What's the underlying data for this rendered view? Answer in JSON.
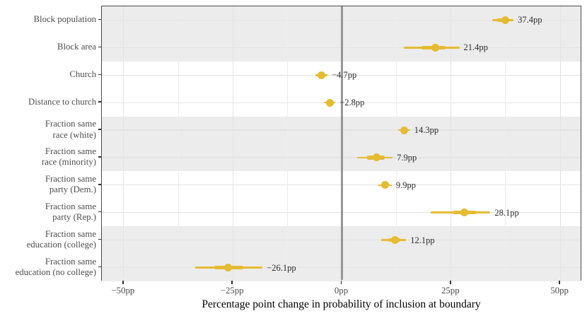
{
  "chart_data": {
    "type": "scatter",
    "subtype": "coefficient-dot-whisker",
    "title": "",
    "xlabel": "Percentage point change in probability of inclusion at boundary",
    "ylabel": "",
    "xlim": [
      -55,
      55
    ],
    "x_major_ticks": [
      {
        "value": -50,
        "label": "−50pp"
      },
      {
        "value": -25,
        "label": "−25pp"
      },
      {
        "value": 0,
        "label": "0pp"
      },
      {
        "value": 25,
        "label": "25pp"
      },
      {
        "value": 50,
        "label": "50pp"
      }
    ],
    "x_minor_ticks": [
      -37.5,
      -12.5,
      12.5,
      37.5
    ],
    "zero_reference_line": 0,
    "grid": "on",
    "legend": "none",
    "band_pattern": "alternating gray/white, two rows per band, starting gray",
    "rows": [
      {
        "category": "Block population",
        "label_lines": [
          "Block population"
        ],
        "estimate": 37.4,
        "value_label": "37.4pp",
        "ci_outer": [
          34.5,
          39.3
        ],
        "ci_inner": [
          35.5,
          38.3
        ]
      },
      {
        "category": "Block area",
        "label_lines": [
          "Block area"
        ],
        "estimate": 21.4,
        "value_label": "21.4pp",
        "ci_outer": [
          14.2,
          26.9
        ],
        "ci_inner": [
          18.2,
          23.8
        ]
      },
      {
        "category": "Church",
        "label_lines": [
          "Church"
        ],
        "estimate": -4.7,
        "value_label": "−4.7pp",
        "ci_outer": [
          -6.1,
          -3.3
        ],
        "ci_inner": [
          -5.4,
          -4.0
        ]
      },
      {
        "category": "Distance to church",
        "label_lines": [
          "Distance to church"
        ],
        "estimate": -2.8,
        "value_label": "−2.8pp",
        "ci_outer": [
          -4.1,
          -1.5
        ],
        "ci_inner": [
          -3.4,
          -2.2
        ]
      },
      {
        "category": "Fraction same race (white)",
        "label_lines": [
          "Fraction same",
          "race (white)"
        ],
        "estimate": 14.3,
        "value_label": "14.3pp",
        "ci_outer": [
          12.9,
          15.6
        ],
        "ci_inner": [
          13.5,
          14.9
        ]
      },
      {
        "category": "Fraction same race (minority)",
        "label_lines": [
          "Fraction same",
          "race (minority)"
        ],
        "estimate": 7.9,
        "value_label": "7.9pp",
        "ci_outer": [
          3.5,
          11.6
        ],
        "ci_inner": [
          5.8,
          9.8
        ]
      },
      {
        "category": "Fraction same party (Dem.)",
        "label_lines": [
          "Fraction same",
          "party (Dem.)"
        ],
        "estimate": 9.9,
        "value_label": "9.9pp",
        "ci_outer": [
          8.2,
          11.4
        ],
        "ci_inner": [
          9.0,
          10.7
        ]
      },
      {
        "category": "Fraction same party (Rep.)",
        "label_lines": [
          "Fraction same",
          "party (Rep.)"
        ],
        "estimate": 28.1,
        "value_label": "28.1pp",
        "ci_outer": [
          20.3,
          34.0
        ],
        "ci_inner": [
          25.5,
          30.7
        ]
      },
      {
        "category": "Fraction same education (college)",
        "label_lines": [
          "Fraction same",
          "education (college)"
        ],
        "estimate": 12.1,
        "value_label": "12.1pp",
        "ci_outer": [
          9.0,
          14.7
        ],
        "ci_inner": [
          10.6,
          13.4
        ]
      },
      {
        "category": "Fraction same education (no college)",
        "label_lines": [
          "Fraction same",
          "education (no college)"
        ],
        "estimate": -26.1,
        "value_label": "−26.1pp",
        "ci_outer": [
          -33.6,
          -18.2
        ],
        "ci_inner": [
          -29.3,
          -22.6
        ]
      }
    ],
    "colors": {
      "point": "#E5BB33",
      "band_gray": "#ECECEC",
      "band_white": "#FFFFFF",
      "gridline": "#E3E3E3",
      "gridline_minor": "#EDEDED",
      "zero_line": "#969696",
      "panel_border": "#4A4A4A",
      "axis_text": "#4D4D4D",
      "value_text": "#2E2E2E",
      "title_text": "#000000",
      "tick_mark": "#333333"
    }
  }
}
